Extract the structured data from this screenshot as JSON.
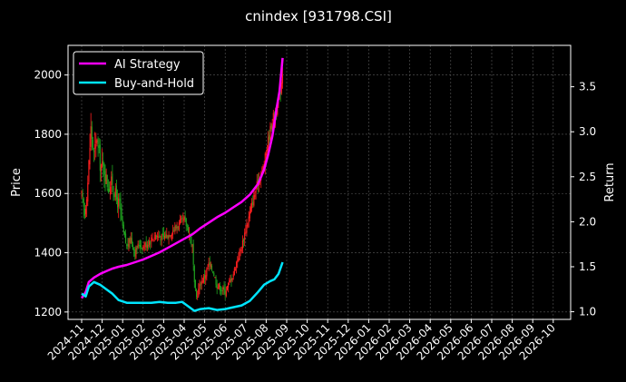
{
  "chart_data": {
    "type": "line",
    "title": "cnindex [931798.CSI]",
    "ylabel_left": "Price",
    "ylabel_right": "Return",
    "y_left_ticks": [
      1200,
      1400,
      1600,
      1800,
      2000
    ],
    "y_left_lim": [
      1175,
      2100
    ],
    "y_right_ticks": [
      1.0,
      1.5,
      2.0,
      2.5,
      3.0,
      3.5
    ],
    "y_right_lim": [
      0.915,
      3.96
    ],
    "x_ticks": [
      "2024-11",
      "2024-12",
      "2025-01",
      "2025-02",
      "2025-03",
      "2025-04",
      "2025-05",
      "2025-06",
      "2025-07",
      "2025-08",
      "2025-09",
      "2025-10",
      "2025-11",
      "2025-12",
      "2026-01",
      "2026-02",
      "2026-03",
      "2026-04",
      "2026-05",
      "2026-06",
      "2026-07",
      "2026-08",
      "2026-09",
      "2026-10"
    ],
    "grid": true,
    "legend_position": "top-left",
    "colors": {
      "up": "#ff1f1f",
      "down": "#1fa31f",
      "ai": "#ff00ff",
      "bh": "#00e5ff"
    },
    "price_path": [
      [
        0,
        1590
      ],
      [
        0.15,
        1530
      ],
      [
        0.3,
        1640
      ],
      [
        0.45,
        1820
      ],
      [
        0.6,
        1730
      ],
      [
        0.75,
        1790
      ],
      [
        0.9,
        1700
      ],
      [
        1.1,
        1680
      ],
      [
        1.3,
        1620
      ],
      [
        1.5,
        1640
      ],
      [
        1.7,
        1580
      ],
      [
        1.85,
        1560
      ],
      [
        2.0,
        1480
      ],
      [
        2.2,
        1420
      ],
      [
        2.4,
        1450
      ],
      [
        2.6,
        1400
      ],
      [
        2.8,
        1430
      ],
      [
        3.0,
        1420
      ],
      [
        3.3,
        1440
      ],
      [
        3.6,
        1460
      ],
      [
        3.9,
        1450
      ],
      [
        4.2,
        1460
      ],
      [
        4.5,
        1480
      ],
      [
        4.8,
        1500
      ],
      [
        5.0,
        1510
      ],
      [
        5.2,
        1480
      ],
      [
        5.4,
        1420
      ],
      [
        5.5,
        1290
      ],
      [
        5.6,
        1250
      ],
      [
        5.8,
        1300
      ],
      [
        6.0,
        1320
      ],
      [
        6.2,
        1360
      ],
      [
        6.4,
        1340
      ],
      [
        6.6,
        1290
      ],
      [
        6.8,
        1280
      ],
      [
        7.0,
        1270
      ],
      [
        7.2,
        1300
      ],
      [
        7.4,
        1330
      ],
      [
        7.6,
        1380
      ],
      [
        7.8,
        1420
      ],
      [
        8.0,
        1480
      ],
      [
        8.3,
        1560
      ],
      [
        8.6,
        1640
      ],
      [
        8.9,
        1700
      ],
      [
        9.1,
        1780
      ],
      [
        9.3,
        1850
      ],
      [
        9.5,
        1880
      ],
      [
        9.65,
        1920
      ],
      [
        9.8,
        2010
      ]
    ],
    "ai_strategy": {
      "name": "AI Strategy",
      "points": [
        [
          0,
          1.15
        ],
        [
          0.2,
          1.22
        ],
        [
          0.35,
          1.33
        ],
        [
          0.6,
          1.38
        ],
        [
          0.9,
          1.42
        ],
        [
          1.2,
          1.45
        ],
        [
          1.5,
          1.48
        ],
        [
          1.8,
          1.5
        ],
        [
          2.2,
          1.52
        ],
        [
          2.6,
          1.55
        ],
        [
          3.0,
          1.58
        ],
        [
          3.4,
          1.62
        ],
        [
          3.8,
          1.66
        ],
        [
          4.2,
          1.71
        ],
        [
          4.6,
          1.76
        ],
        [
          5.0,
          1.81
        ],
        [
          5.4,
          1.86
        ],
        [
          5.8,
          1.93
        ],
        [
          6.2,
          1.99
        ],
        [
          6.6,
          2.05
        ],
        [
          7.0,
          2.1
        ],
        [
          7.4,
          2.16
        ],
        [
          7.8,
          2.22
        ],
        [
          8.2,
          2.3
        ],
        [
          8.6,
          2.42
        ],
        [
          8.9,
          2.58
        ],
        [
          9.1,
          2.75
        ],
        [
          9.3,
          2.95
        ],
        [
          9.5,
          3.25
        ],
        [
          9.65,
          3.45
        ],
        [
          9.8,
          3.82
        ]
      ]
    },
    "buy_and_hold": {
      "name": "Buy-and-Hold",
      "points": [
        [
          0,
          1.2
        ],
        [
          0.2,
          1.17
        ],
        [
          0.35,
          1.28
        ],
        [
          0.6,
          1.33
        ],
        [
          0.9,
          1.3
        ],
        [
          1.2,
          1.25
        ],
        [
          1.5,
          1.2
        ],
        [
          1.8,
          1.13
        ],
        [
          2.2,
          1.1
        ],
        [
          2.6,
          1.1
        ],
        [
          3.0,
          1.1
        ],
        [
          3.4,
          1.1
        ],
        [
          3.8,
          1.11
        ],
        [
          4.2,
          1.1
        ],
        [
          4.6,
          1.1
        ],
        [
          4.9,
          1.11
        ],
        [
          5.2,
          1.06
        ],
        [
          5.5,
          1.01
        ],
        [
          5.8,
          1.03
        ],
        [
          6.2,
          1.04
        ],
        [
          6.6,
          1.02
        ],
        [
          7.0,
          1.03
        ],
        [
          7.4,
          1.05
        ],
        [
          7.8,
          1.07
        ],
        [
          8.2,
          1.12
        ],
        [
          8.6,
          1.22
        ],
        [
          8.9,
          1.3
        ],
        [
          9.2,
          1.34
        ],
        [
          9.4,
          1.36
        ],
        [
          9.6,
          1.42
        ],
        [
          9.8,
          1.55
        ]
      ]
    }
  }
}
